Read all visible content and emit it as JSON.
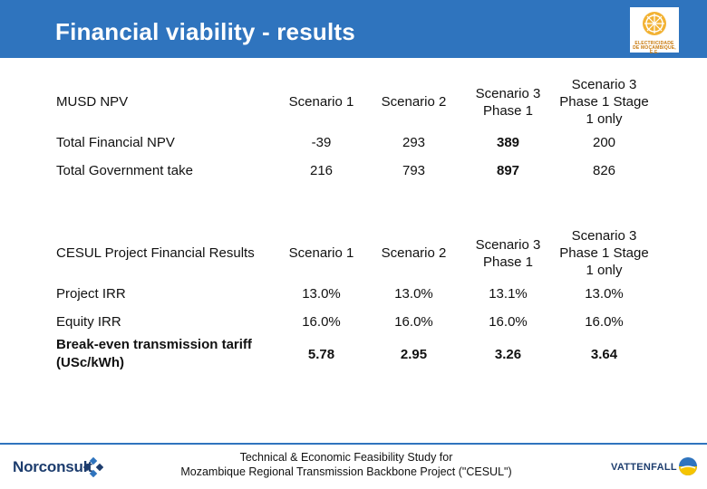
{
  "slide": {
    "title": "Financial viability - results"
  },
  "logo": {
    "caption": "ELECTRICIDADE DE MOÇAMBIQUE, E.E."
  },
  "npv_table": {
    "header": {
      "label": "MUSD NPV",
      "scenarios": [
        "Scenario 1",
        "Scenario 2",
        "Scenario 3 Phase 1",
        "Scenario 3 Phase 1 Stage 1 only"
      ]
    },
    "rows": [
      {
        "label": "Total Financial NPV",
        "values": [
          "-39",
          "293",
          "389",
          "200"
        ]
      },
      {
        "label": "Total Government take",
        "values": [
          "216",
          "793",
          "897",
          "826"
        ]
      }
    ]
  },
  "results_table": {
    "header": {
      "label": "CESUL Project Financial Results",
      "scenarios": [
        "Scenario 1",
        "Scenario 2",
        "Scenario 3 Phase 1",
        "Scenario 3 Phase 1 Stage 1 only"
      ]
    },
    "rows": [
      {
        "label": "Project IRR",
        "values": [
          "13.0%",
          "13.0%",
          "13.1%",
          "13.0%"
        ]
      },
      {
        "label": "Equity IRR",
        "values": [
          "16.0%",
          "16.0%",
          "16.0%",
          "16.0%"
        ]
      },
      {
        "label": "Break-even transmission tariff (USc/kWh)",
        "values": [
          "5.78",
          "2.95",
          "3.26",
          "3.64"
        ]
      }
    ]
  },
  "footer": {
    "study_line1": "Technical & Economic Feasibility Study for",
    "study_line2": "Mozambique Regional Transmission Backbone Project (\"CESUL\")",
    "left_brand": "Norconsult",
    "right_brand": "VATTENFALL"
  },
  "colors": {
    "header": "#2f74be",
    "table_tint": "#dbe6f4"
  },
  "icons": {
    "logo": "edm-logo-icon",
    "norconsult": "norconsult-mark-icon",
    "vattenfall": "vattenfall-mark-icon"
  }
}
